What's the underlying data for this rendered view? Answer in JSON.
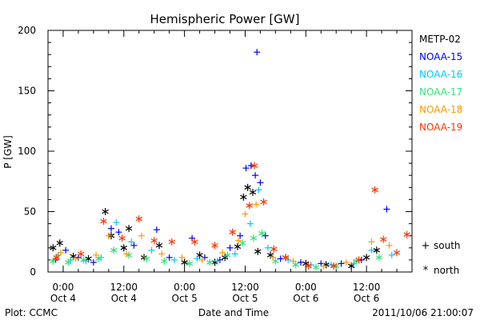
{
  "chart_data": {
    "type": "scatter",
    "title": "Hemispheric Power [GW]",
    "xlabel": "Date and Time",
    "ylabel": "P [GW]",
    "ylim": [
      0,
      200
    ],
    "xlim": [
      "2011-10-03T21:00",
      "2011-10-06T21:00"
    ],
    "yticks": [
      0,
      50,
      100,
      150,
      200
    ],
    "xticks": [
      {
        "t": "2011-10-04T00:00",
        "line1": "0:00",
        "line2": "Oct 4"
      },
      {
        "t": "2011-10-04T12:00",
        "line1": "12:00",
        "line2": "Oct 4"
      },
      {
        "t": "2011-10-05T00:00",
        "line1": "0:00",
        "line2": "Oct 5"
      },
      {
        "t": "2011-10-05T12:00",
        "line1": "12:00",
        "line2": "Oct 5"
      },
      {
        "t": "2011-10-06T00:00",
        "line1": "0:00",
        "line2": "Oct 6"
      },
      {
        "t": "2011-10-06T12:00",
        "line1": "12:00",
        "line2": "Oct 6"
      }
    ],
    "grid": false,
    "legend_position": "right",
    "series": [
      {
        "name": "METP-02",
        "color": "#000000",
        "points": [
          {
            "t": "2011-10-03T22:00",
            "y": 20,
            "m": "north"
          },
          {
            "t": "2011-10-03T23:20",
            "y": 24,
            "m": "north"
          },
          {
            "t": "2011-10-04T02:00",
            "y": 13,
            "m": "north"
          },
          {
            "t": "2011-10-04T05:00",
            "y": 11,
            "m": "north"
          },
          {
            "t": "2011-10-04T08:20",
            "y": 50,
            "m": "north"
          },
          {
            "t": "2011-10-04T09:30",
            "y": 30,
            "m": "north"
          },
          {
            "t": "2011-10-04T12:00",
            "y": 20,
            "m": "north"
          },
          {
            "t": "2011-10-04T13:00",
            "y": 36,
            "m": "north"
          },
          {
            "t": "2011-10-04T16:00",
            "y": 12,
            "m": "north"
          },
          {
            "t": "2011-10-04T19:00",
            "y": 22,
            "m": "north"
          },
          {
            "t": "2011-10-05T00:00",
            "y": 8,
            "m": "north"
          },
          {
            "t": "2011-10-05T03:00",
            "y": 14,
            "m": "north"
          },
          {
            "t": "2011-10-05T06:00",
            "y": 8,
            "m": "north"
          },
          {
            "t": "2011-10-05T08:00",
            "y": 12,
            "m": "north"
          },
          {
            "t": "2011-10-05T10:30",
            "y": 21,
            "m": "north"
          },
          {
            "t": "2011-10-05T11:40",
            "y": 62,
            "m": "north"
          },
          {
            "t": "2011-10-05T12:30",
            "y": 70,
            "m": "north"
          },
          {
            "t": "2011-10-05T13:30",
            "y": 66,
            "m": "north"
          },
          {
            "t": "2011-10-05T14:30",
            "y": 17,
            "m": "north"
          },
          {
            "t": "2011-10-05T17:00",
            "y": 14,
            "m": "north"
          },
          {
            "t": "2011-10-05T20:00",
            "y": 12,
            "m": "north"
          },
          {
            "t": "2011-10-06T00:00",
            "y": 7,
            "m": "north"
          },
          {
            "t": "2011-10-06T04:00",
            "y": 6,
            "m": "north"
          },
          {
            "t": "2011-10-06T09:00",
            "y": 5,
            "m": "north"
          },
          {
            "t": "2011-10-06T12:00",
            "y": 12,
            "m": "north"
          },
          {
            "t": "2011-10-06T14:00",
            "y": 18,
            "m": "north"
          }
        ]
      },
      {
        "name": "NOAA-15",
        "color": "#0000ff",
        "points": [
          {
            "t": "2011-10-03T22:30",
            "y": 10,
            "m": "south"
          },
          {
            "t": "2011-10-04T00:30",
            "y": 18,
            "m": "south"
          },
          {
            "t": "2011-10-04T03:00",
            "y": 12,
            "m": "south"
          },
          {
            "t": "2011-10-04T06:00",
            "y": 8,
            "m": "south"
          },
          {
            "t": "2011-10-04T09:30",
            "y": 36,
            "m": "south"
          },
          {
            "t": "2011-10-04T11:00",
            "y": 33,
            "m": "south"
          },
          {
            "t": "2011-10-04T14:00",
            "y": 22,
            "m": "south"
          },
          {
            "t": "2011-10-04T18:30",
            "y": 35,
            "m": "south"
          },
          {
            "t": "2011-10-04T21:00",
            "y": 12,
            "m": "south"
          },
          {
            "t": "2011-10-05T01:30",
            "y": 28,
            "m": "south"
          },
          {
            "t": "2011-10-05T04:00",
            "y": 12,
            "m": "south"
          },
          {
            "t": "2011-10-05T07:00",
            "y": 10,
            "m": "south"
          },
          {
            "t": "2011-10-05T09:00",
            "y": 20,
            "m": "south"
          },
          {
            "t": "2011-10-05T11:00",
            "y": 30,
            "m": "south"
          },
          {
            "t": "2011-10-05T12:10",
            "y": 86,
            "m": "south"
          },
          {
            "t": "2011-10-05T13:10",
            "y": 88,
            "m": "south"
          },
          {
            "t": "2011-10-05T14:00",
            "y": 80,
            "m": "south"
          },
          {
            "t": "2011-10-05T14:20",
            "y": 182,
            "m": "south"
          },
          {
            "t": "2011-10-05T15:00",
            "y": 74,
            "m": "south"
          },
          {
            "t": "2011-10-05T16:00",
            "y": 30,
            "m": "south"
          },
          {
            "t": "2011-10-05T19:00",
            "y": 11,
            "m": "south"
          },
          {
            "t": "2011-10-05T23:00",
            "y": 8,
            "m": "south"
          },
          {
            "t": "2011-10-06T03:00",
            "y": 7,
            "m": "south"
          },
          {
            "t": "2011-10-06T07:00",
            "y": 7,
            "m": "south"
          },
          {
            "t": "2011-10-06T11:00",
            "y": 10,
            "m": "south"
          },
          {
            "t": "2011-10-06T16:00",
            "y": 52,
            "m": "south"
          }
        ]
      },
      {
        "name": "NOAA-16",
        "color": "#00c8ff",
        "points": [
          {
            "t": "2011-10-03T23:00",
            "y": 14,
            "m": "south"
          },
          {
            "t": "2011-10-04T01:30",
            "y": 10,
            "m": "south"
          },
          {
            "t": "2011-10-04T04:30",
            "y": 9,
            "m": "south"
          },
          {
            "t": "2011-10-04T07:30",
            "y": 12,
            "m": "south"
          },
          {
            "t": "2011-10-04T10:30",
            "y": 41,
            "m": "south"
          },
          {
            "t": "2011-10-04T13:30",
            "y": 25,
            "m": "south"
          },
          {
            "t": "2011-10-04T17:30",
            "y": 18,
            "m": "south"
          },
          {
            "t": "2011-10-04T22:00",
            "y": 10,
            "m": "south"
          },
          {
            "t": "2011-10-05T02:30",
            "y": 11,
            "m": "south"
          },
          {
            "t": "2011-10-05T06:30",
            "y": 9,
            "m": "south"
          },
          {
            "t": "2011-10-05T10:00",
            "y": 15,
            "m": "south"
          },
          {
            "t": "2011-10-05T13:00",
            "y": 40,
            "m": "south"
          },
          {
            "t": "2011-10-05T14:40",
            "y": 68,
            "m": "south"
          },
          {
            "t": "2011-10-05T16:30",
            "y": 20,
            "m": "south"
          },
          {
            "t": "2011-10-05T20:30",
            "y": 10,
            "m": "south"
          },
          {
            "t": "2011-10-06T01:00",
            "y": 6,
            "m": "south"
          },
          {
            "t": "2011-10-06T05:00",
            "y": 6,
            "m": "south"
          },
          {
            "t": "2011-10-06T09:30",
            "y": 7,
            "m": "south"
          },
          {
            "t": "2011-10-06T13:00",
            "y": 18,
            "m": "south"
          },
          {
            "t": "2011-10-06T17:00",
            "y": 14,
            "m": "south"
          }
        ]
      },
      {
        "name": "NOAA-17",
        "color": "#33e07a",
        "points": [
          {
            "t": "2011-10-03T22:00",
            "y": 9,
            "m": "north"
          },
          {
            "t": "2011-10-04T01:00",
            "y": 8,
            "m": "north"
          },
          {
            "t": "2011-10-04T04:00",
            "y": 10,
            "m": "north"
          },
          {
            "t": "2011-10-04T07:00",
            "y": 11,
            "m": "north"
          },
          {
            "t": "2011-10-04T10:00",
            "y": 18,
            "m": "north"
          },
          {
            "t": "2011-10-04T13:00",
            "y": 14,
            "m": "north"
          },
          {
            "t": "2011-10-04T16:30",
            "y": 11,
            "m": "north"
          },
          {
            "t": "2011-10-04T20:00",
            "y": 9,
            "m": "north"
          },
          {
            "t": "2011-10-05T01:00",
            "y": 7,
            "m": "north"
          },
          {
            "t": "2011-10-05T05:00",
            "y": 8,
            "m": "north"
          },
          {
            "t": "2011-10-05T08:30",
            "y": 14,
            "m": "north"
          },
          {
            "t": "2011-10-05T11:30",
            "y": 24,
            "m": "north"
          },
          {
            "t": "2011-10-05T13:40",
            "y": 28,
            "m": "north"
          },
          {
            "t": "2011-10-05T15:20",
            "y": 32,
            "m": "north"
          },
          {
            "t": "2011-10-05T18:00",
            "y": 9,
            "m": "north"
          },
          {
            "t": "2011-10-05T22:00",
            "y": 6,
            "m": "north"
          },
          {
            "t": "2011-10-06T02:00",
            "y": 4,
            "m": "north"
          },
          {
            "t": "2011-10-06T06:00",
            "y": 5,
            "m": "north"
          },
          {
            "t": "2011-10-06T10:00",
            "y": 9,
            "m": "north"
          },
          {
            "t": "2011-10-06T14:30",
            "y": 12,
            "m": "north"
          }
        ]
      },
      {
        "name": "NOAA-18",
        "color": "#ff9900",
        "points": [
          {
            "t": "2011-10-03T23:30",
            "y": 16,
            "m": "south"
          },
          {
            "t": "2011-10-04T02:30",
            "y": 11,
            "m": "south"
          },
          {
            "t": "2011-10-04T06:30",
            "y": 14,
            "m": "south"
          },
          {
            "t": "2011-10-04T09:00",
            "y": 30,
            "m": "south"
          },
          {
            "t": "2011-10-04T12:30",
            "y": 15,
            "m": "south"
          },
          {
            "t": "2011-10-04T15:30",
            "y": 30,
            "m": "south"
          },
          {
            "t": "2011-10-04T19:30",
            "y": 15,
            "m": "south"
          },
          {
            "t": "2011-10-04T23:30",
            "y": 12,
            "m": "south"
          },
          {
            "t": "2011-10-05T03:30",
            "y": 10,
            "m": "south"
          },
          {
            "t": "2011-10-05T07:30",
            "y": 16,
            "m": "south"
          },
          {
            "t": "2011-10-05T10:40",
            "y": 26,
            "m": "south"
          },
          {
            "t": "2011-10-05T12:00",
            "y": 48,
            "m": "south"
          },
          {
            "t": "2011-10-05T14:10",
            "y": 56,
            "m": "south"
          },
          {
            "t": "2011-10-05T17:30",
            "y": 12,
            "m": "south"
          },
          {
            "t": "2011-10-05T21:30",
            "y": 9,
            "m": "south"
          },
          {
            "t": "2011-10-06T03:30",
            "y": 5,
            "m": "south"
          },
          {
            "t": "2011-10-06T08:00",
            "y": 8,
            "m": "south"
          },
          {
            "t": "2011-10-06T13:00",
            "y": 25,
            "m": "south"
          },
          {
            "t": "2011-10-06T16:30",
            "y": 22,
            "m": "south"
          }
        ]
      },
      {
        "name": "NOAA-19",
        "color": "#ff3300",
        "points": [
          {
            "t": "2011-10-03T22:40",
            "y": 12,
            "m": "north"
          },
          {
            "t": "2011-10-04T03:30",
            "y": 15,
            "m": "north"
          },
          {
            "t": "2011-10-04T08:00",
            "y": 42,
            "m": "north"
          },
          {
            "t": "2011-10-04T11:40",
            "y": 28,
            "m": "north"
          },
          {
            "t": "2011-10-04T15:00",
            "y": 44,
            "m": "north"
          },
          {
            "t": "2011-10-04T18:00",
            "y": 26,
            "m": "north"
          },
          {
            "t": "2011-10-04T21:30",
            "y": 25,
            "m": "north"
          },
          {
            "t": "2011-10-05T02:00",
            "y": 25,
            "m": "north"
          },
          {
            "t": "2011-10-05T06:00",
            "y": 22,
            "m": "north"
          },
          {
            "t": "2011-10-05T09:30",
            "y": 33,
            "m": "north"
          },
          {
            "t": "2011-10-05T12:50",
            "y": 55,
            "m": "north"
          },
          {
            "t": "2011-10-05T13:50",
            "y": 88,
            "m": "north"
          },
          {
            "t": "2011-10-05T15:40",
            "y": 58,
            "m": "north"
          },
          {
            "t": "2011-10-05T17:40",
            "y": 19,
            "m": "north"
          },
          {
            "t": "2011-10-05T20:00",
            "y": 12,
            "m": "north"
          },
          {
            "t": "2011-10-06T00:30",
            "y": 5,
            "m": "north"
          },
          {
            "t": "2011-10-06T05:30",
            "y": 5,
            "m": "north"
          },
          {
            "t": "2011-10-06T10:30",
            "y": 10,
            "m": "north"
          },
          {
            "t": "2011-10-06T13:40",
            "y": 68,
            "m": "north"
          },
          {
            "t": "2011-10-06T15:20",
            "y": 27,
            "m": "north"
          },
          {
            "t": "2011-10-06T18:00",
            "y": 16,
            "m": "north"
          },
          {
            "t": "2011-10-06T20:00",
            "y": 31,
            "m": "north"
          }
        ]
      }
    ]
  },
  "legend": {
    "south_symbol": "+",
    "south_label": "south",
    "north_symbol": "*",
    "north_label": "north"
  },
  "footer": {
    "plot_source": "Plot: CCMC",
    "timestamp": "2011/10/06 21:00:07"
  }
}
